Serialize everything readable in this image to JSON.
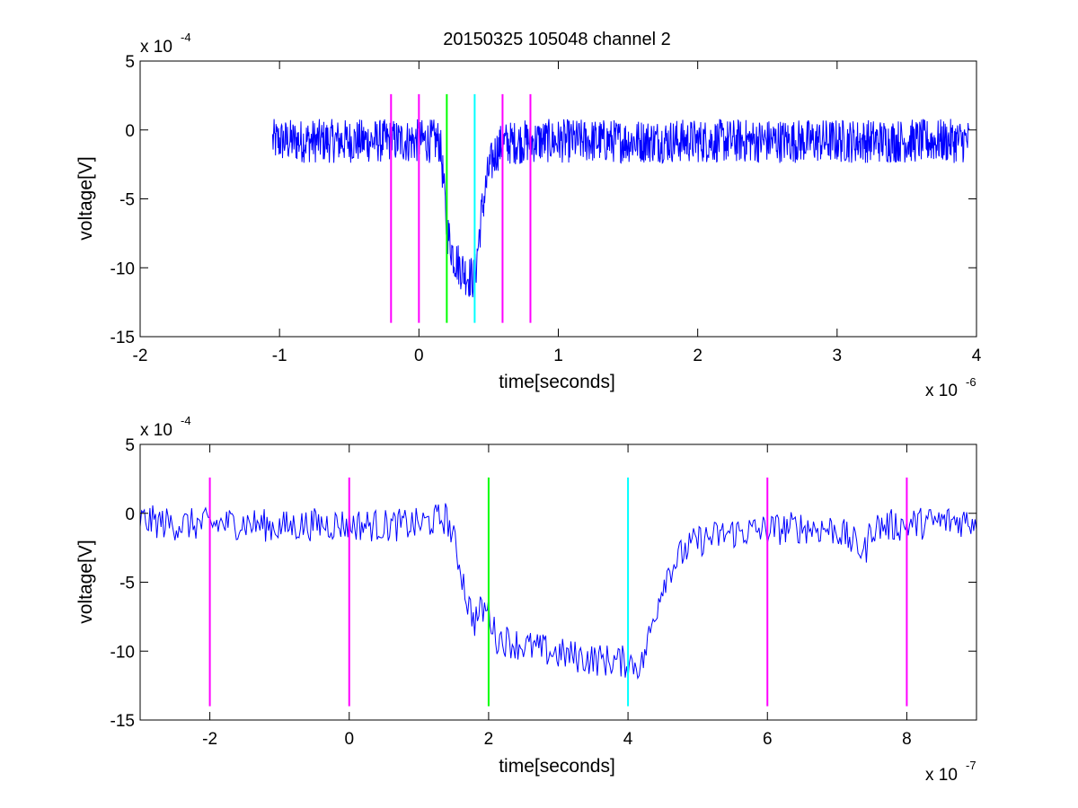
{
  "figure": {
    "title": "20150325 105048 channel 2"
  },
  "chart_data": [
    {
      "type": "line",
      "title": "20150325 105048 channel 2",
      "xlabel": "time[seconds]",
      "ylabel": "voltage[V]",
      "x_exponent_label": "x 10",
      "x_exponent": "-6",
      "y_exponent_label": "x 10",
      "y_exponent": "-4",
      "xlim": [
        -2,
        4
      ],
      "ylim": [
        -15,
        5
      ],
      "xticks": [
        -2,
        -1,
        0,
        1,
        2,
        3,
        4
      ],
      "xtick_labels": [
        "-2",
        "-1",
        "0",
        "1",
        "2",
        "3",
        "4"
      ],
      "yticks": [
        5,
        0,
        -5,
        -10,
        -15
      ],
      "ytick_labels": [
        "5",
        "0",
        "-5",
        "-10",
        "-15"
      ],
      "grid": false,
      "series": [
        {
          "color": "#0000ff",
          "x": [
            -1.05,
            -0.8,
            -0.6,
            -0.4,
            -0.2,
            0.0,
            0.1,
            0.15,
            0.17,
            0.2,
            0.25,
            0.3,
            0.35,
            0.4,
            0.45,
            0.5,
            0.55,
            0.6,
            0.8,
            1.0,
            1.5,
            2.0,
            2.5,
            3.0,
            3.5,
            3.95
          ],
          "y": [
            -0.8,
            -0.8,
            -0.8,
            -0.8,
            -0.8,
            -0.8,
            -0.8,
            -0.8,
            -3.0,
            -7.2,
            -9.2,
            -10.0,
            -10.6,
            -10.8,
            -6.0,
            -3.0,
            -1.6,
            -1.0,
            -0.8,
            -0.8,
            -0.8,
            -0.8,
            -0.8,
            -0.8,
            -0.8,
            -0.8
          ],
          "noise_amplitude": 1.6
        }
      ],
      "vlines": [
        {
          "x": -0.2,
          "color": "#ff00ff"
        },
        {
          "x": 0.0,
          "color": "#ff00ff"
        },
        {
          "x": 0.2,
          "color": "#00ff00"
        },
        {
          "x": 0.4,
          "color": "#00ffff"
        },
        {
          "x": 0.6,
          "color": "#ff00ff"
        },
        {
          "x": 0.8,
          "color": "#ff00ff"
        }
      ],
      "vline_range": [
        -14,
        2.6
      ]
    },
    {
      "type": "line",
      "xlabel": "time[seconds]",
      "ylabel": "voltage[V]",
      "x_exponent_label": "x 10",
      "x_exponent": "-7",
      "y_exponent_label": "x 10",
      "y_exponent": "-4",
      "xlim": [
        -3,
        9
      ],
      "ylim": [
        -15,
        5
      ],
      "xticks": [
        -2,
        0,
        2,
        4,
        6,
        8
      ],
      "xtick_labels": [
        "-2",
        "0",
        "2",
        "4",
        "6",
        "8"
      ],
      "yticks": [
        5,
        0,
        -5,
        -10,
        -15
      ],
      "ytick_labels": [
        "5",
        "0",
        "-5",
        "-10",
        "-15"
      ],
      "grid": false,
      "series": [
        {
          "color": "#0000ff",
          "x": [
            -3.0,
            -2.5,
            -2.0,
            -1.5,
            -1.0,
            -0.5,
            0.0,
            0.5,
            1.0,
            1.4,
            1.5,
            1.6,
            1.7,
            1.8,
            1.9,
            2.0,
            2.1,
            2.5,
            3.0,
            3.5,
            4.0,
            4.2,
            4.3,
            4.4,
            4.5,
            4.6,
            4.8,
            5.0,
            5.5,
            6.0,
            6.5,
            7.0,
            7.4,
            7.5,
            8.0,
            8.5,
            9.0
          ],
          "y": [
            -0.5,
            -0.8,
            -0.8,
            -0.7,
            -1.0,
            -0.8,
            -0.8,
            -0.9,
            -0.8,
            -0.3,
            -2.0,
            -4.0,
            -6.5,
            -7.8,
            -7.0,
            -7.0,
            -9.0,
            -9.6,
            -10.2,
            -10.6,
            -10.8,
            -11.0,
            -9.0,
            -7.0,
            -5.0,
            -4.0,
            -2.8,
            -2.0,
            -1.4,
            -1.2,
            -1.0,
            -1.2,
            -2.8,
            -1.0,
            -0.8,
            -0.6,
            -0.5
          ],
          "noise_amplitude": 1.2
        }
      ],
      "vlines": [
        {
          "x": -2.0,
          "color": "#ff00ff"
        },
        {
          "x": 0.0,
          "color": "#ff00ff"
        },
        {
          "x": 2.0,
          "color": "#00ff00"
        },
        {
          "x": 4.0,
          "color": "#00ffff"
        },
        {
          "x": 6.0,
          "color": "#ff00ff"
        },
        {
          "x": 8.0,
          "color": "#ff00ff"
        }
      ],
      "vline_range": [
        -14,
        2.6
      ]
    }
  ]
}
